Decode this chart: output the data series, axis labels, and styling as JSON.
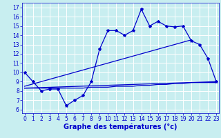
{
  "bg_color": "#c8eef0",
  "grid_color": "#ffffff",
  "line_color": "#0000cc",
  "xlabel": "Graphe des températures (°c)",
  "xlabel_fontsize": 7,
  "tick_fontsize": 5.5,
  "ytick_labels": [
    6,
    7,
    8,
    9,
    10,
    11,
    12,
    13,
    14,
    15,
    16,
    17
  ],
  "xtick_labels": [
    0,
    1,
    2,
    3,
    4,
    5,
    6,
    7,
    8,
    9,
    10,
    11,
    12,
    13,
    14,
    15,
    16,
    17,
    18,
    19,
    20,
    21,
    22,
    23
  ],
  "xlim": [
    -0.3,
    23.3
  ],
  "ylim": [
    5.6,
    17.5
  ],
  "line1_x": [
    0,
    1,
    2,
    3,
    4,
    5,
    6,
    7,
    8,
    9,
    10,
    11,
    12,
    13,
    14,
    15,
    16,
    17,
    18,
    19,
    20,
    21,
    22,
    23
  ],
  "line1_y": [
    10.0,
    9.0,
    8.0,
    8.2,
    8.2,
    6.4,
    7.0,
    7.5,
    9.0,
    12.5,
    14.5,
    14.5,
    14.0,
    14.5,
    16.8,
    15.0,
    15.5,
    15.0,
    14.9,
    15.0,
    13.4,
    13.0,
    11.5,
    9.0
  ],
  "line2_x": [
    0,
    1,
    2,
    3,
    4,
    5,
    6,
    7,
    8,
    9,
    10,
    11,
    12,
    13,
    14,
    15,
    16,
    17,
    18,
    19,
    20,
    21,
    22,
    23
  ],
  "line2_y": [
    8.3,
    8.3,
    8.3,
    8.3,
    8.3,
    8.3,
    8.3,
    8.3,
    8.4,
    8.4,
    8.4,
    8.5,
    8.5,
    8.5,
    8.6,
    8.6,
    8.7,
    8.7,
    8.8,
    8.8,
    8.9,
    8.9,
    8.9,
    8.9
  ],
  "line3_x": [
    0,
    20
  ],
  "line3_y": [
    8.5,
    13.5
  ],
  "line4_x": [
    0,
    23
  ],
  "line4_y": [
    8.3,
    9.0
  ],
  "figsize": [
    3.2,
    2.0
  ],
  "dpi": 100
}
